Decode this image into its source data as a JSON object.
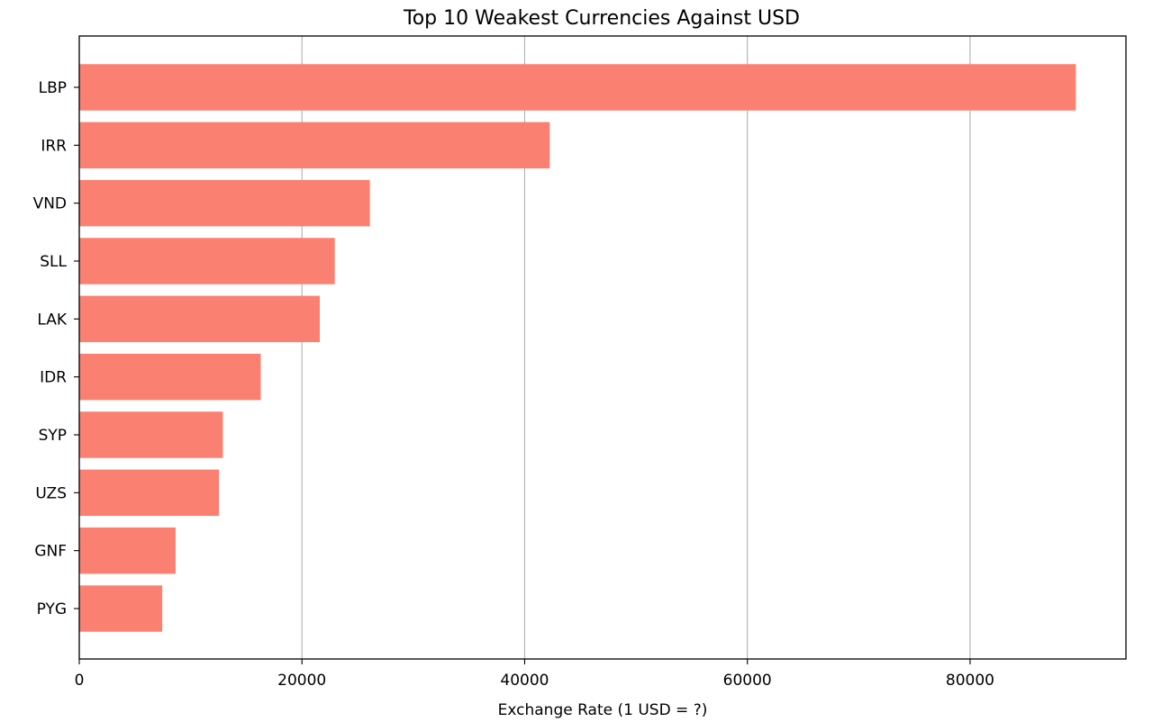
{
  "chart_data": {
    "type": "bar",
    "orientation": "horizontal",
    "title": "Top 10 Weakest Currencies Against USD",
    "xlabel": "Exchange Rate (1 USD = ?)",
    "ylabel": "",
    "categories": [
      "LBP",
      "IRR",
      "VND",
      "SLL",
      "LAK",
      "IDR",
      "SYP",
      "UZS",
      "GNF",
      "PYG"
    ],
    "values": [
      89500,
      42250,
      26100,
      22950,
      21600,
      16300,
      12900,
      12550,
      8650,
      7450
    ],
    "xlim": [
      0,
      94000
    ],
    "xticks": [
      0,
      20000,
      40000,
      60000,
      80000
    ],
    "xtick_labels": [
      "0",
      "20000",
      "40000",
      "60000",
      "80000"
    ],
    "grid": "x-axis vertical lines",
    "legend": "none",
    "bar_color": "#fa8072"
  }
}
